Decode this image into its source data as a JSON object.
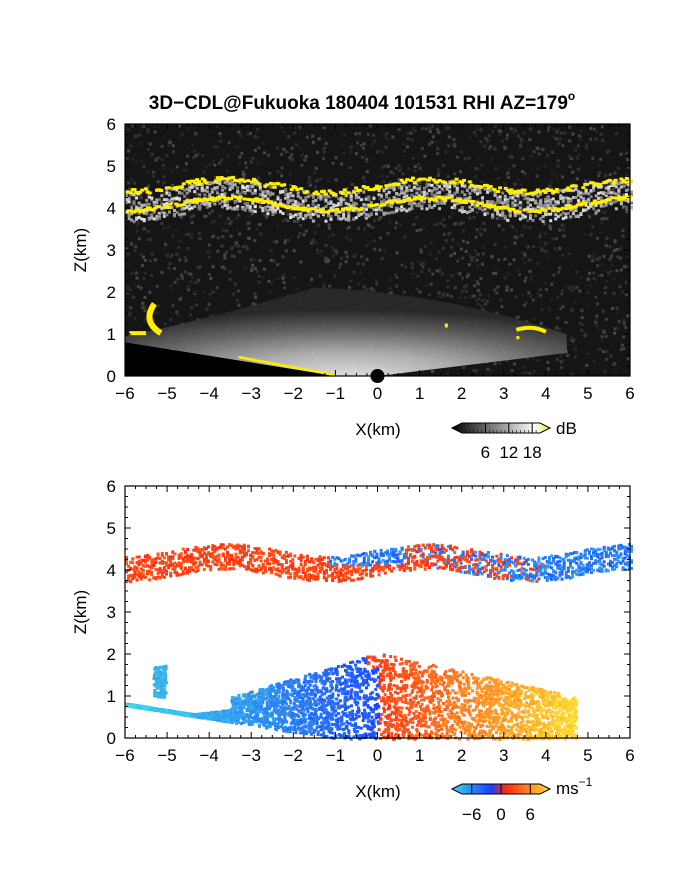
{
  "title": "3D−CDL@Fukuoka 180404 101531 RHI AZ=179",
  "title_degree": "o",
  "chart_data": [
    {
      "type": "heatmap",
      "variable": "backscatter intensity",
      "xlabel": "X(km)",
      "ylabel": "Z(km)",
      "xlim": [
        -6,
        6
      ],
      "ylim": [
        0,
        6
      ],
      "x_ticks": [
        "−6",
        "−5",
        "−4",
        "−3",
        "−2",
        "−1",
        "0",
        "1",
        "2",
        "3",
        "4",
        "5",
        "6"
      ],
      "y_ticks": [
        "0",
        "1",
        "2",
        "3",
        "4",
        "5",
        "6"
      ],
      "colorbar": {
        "unit": "dB",
        "ticks": [
          "6",
          "12",
          "18"
        ],
        "tick_values": [
          6,
          12,
          18
        ],
        "range": [
          0,
          20
        ],
        "colors": [
          "#000000",
          "#ffffff",
          "#f0e030"
        ]
      },
      "features": [
        {
          "name": "elevated layer",
          "x": [
            -6,
            6
          ],
          "z": [
            3.8,
            4.6
          ],
          "color": "#ffee00"
        },
        {
          "name": "near-surface cone",
          "x": [
            -6,
            4.5
          ],
          "z": [
            0,
            1.2
          ],
          "color": "#cfcfcf"
        },
        {
          "name": "left echo",
          "x": [
            -5.4,
            -5.0
          ],
          "z": [
            1.0,
            1.7
          ],
          "color": "#ffee00"
        },
        {
          "name": "right echo",
          "x": [
            3.2,
            4.0
          ],
          "z": [
            0.9,
            1.2
          ],
          "color": "#ffee00"
        }
      ]
    },
    {
      "type": "heatmap",
      "variable": "radial velocity",
      "xlabel": "X(km)",
      "ylabel": "Z(km)",
      "xlim": [
        -6,
        6
      ],
      "ylim": [
        0,
        6
      ],
      "x_ticks": [
        "−6",
        "−5",
        "−4",
        "−3",
        "−2",
        "−1",
        "0",
        "1",
        "2",
        "3",
        "4",
        "5",
        "6"
      ],
      "y_ticks": [
        "0",
        "1",
        "2",
        "3",
        "4",
        "5",
        "6"
      ],
      "colorbar": {
        "unit": "ms",
        "unit_exp": "−1",
        "ticks": [
          "−6",
          "0",
          "6"
        ],
        "tick_values": [
          -6,
          0,
          6
        ],
        "range": [
          -8,
          8
        ],
        "colors": [
          "#3fd8ea",
          "#1a3cff",
          "#ff2a10",
          "#ffe034"
        ]
      },
      "features": [
        {
          "name": "elevated layer",
          "x": [
            -6,
            6
          ],
          "z": [
            3.8,
            4.7
          ],
          "velocity_west": 3,
          "velocity_east": -4
        },
        {
          "name": "near-surface flow",
          "x": [
            -6,
            4.5
          ],
          "z": [
            0,
            2.1
          ],
          "velocity_west": -6,
          "velocity_east": 6
        }
      ]
    }
  ]
}
